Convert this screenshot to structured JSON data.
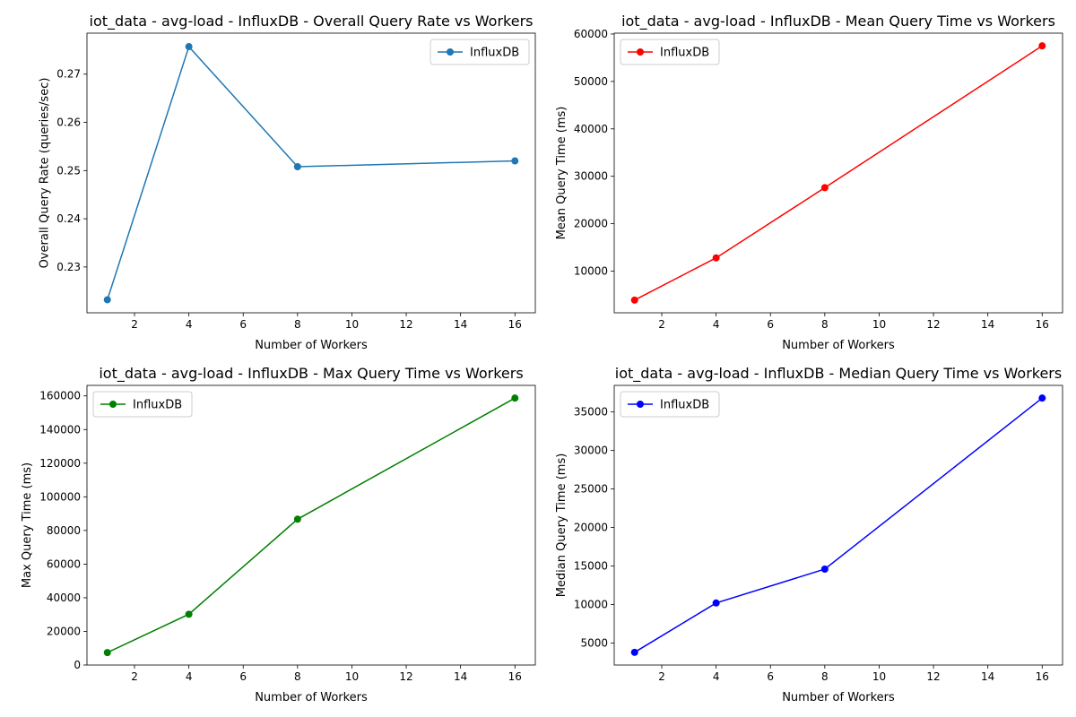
{
  "chart_data": [
    {
      "type": "line",
      "title": "iot_data - avg-load - InfluxDB - Overall Query Rate vs Workers",
      "xlabel": "Number of Workers",
      "ylabel": "Overall Query Rate (queries/sec)",
      "x": [
        1,
        4,
        8,
        16
      ],
      "series": [
        {
          "name": "InfluxDB",
          "values": [
            0.2232,
            0.2757,
            0.2508,
            0.252
          ],
          "color": "#1f77b4"
        }
      ],
      "xlim": [
        0.25,
        16.75
      ],
      "ylim": [
        0.2205,
        0.2785
      ],
      "xticks": [
        2,
        4,
        6,
        8,
        10,
        12,
        14,
        16
      ],
      "yticks": [
        0.23,
        0.24,
        0.25,
        0.26,
        0.27
      ],
      "yticklabels": [
        "0.23",
        "0.24",
        "0.25",
        "0.26",
        "0.27"
      ],
      "legend": "top-right",
      "grid": false
    },
    {
      "type": "line",
      "title": "iot_data - avg-load - InfluxDB - Mean Query Time vs Workers",
      "xlabel": "Number of Workers",
      "ylabel": "Mean Query Time (ms)",
      "x": [
        1,
        4,
        8,
        16
      ],
      "series": [
        {
          "name": "InfluxDB",
          "values": [
            3900,
            12800,
            27600,
            57500
          ],
          "color": "#ff0000"
        }
      ],
      "xlim": [
        0.25,
        16.75
      ],
      "ylim": [
        1220,
        60180
      ],
      "xticks": [
        2,
        4,
        6,
        8,
        10,
        12,
        14,
        16
      ],
      "yticks": [
        10000,
        20000,
        30000,
        40000,
        50000,
        60000
      ],
      "yticklabels": [
        "10000",
        "20000",
        "30000",
        "40000",
        "50000",
        "60000"
      ],
      "legend": "top-left",
      "grid": false
    },
    {
      "type": "line",
      "title": "iot_data - avg-load - InfluxDB - Max Query Time vs Workers",
      "xlabel": "Number of Workers",
      "ylabel": "Max Query Time (ms)",
      "x": [
        1,
        4,
        8,
        16
      ],
      "series": [
        {
          "name": "InfluxDB",
          "values": [
            7400,
            30200,
            86700,
            158700
          ],
          "color": "#008000"
        }
      ],
      "xlim": [
        0.25,
        16.75
      ],
      "ylim": [
        0,
        166260
      ],
      "xticks": [
        2,
        4,
        6,
        8,
        10,
        12,
        14,
        16
      ],
      "yticks": [
        0,
        20000,
        40000,
        60000,
        80000,
        100000,
        120000,
        140000,
        160000
      ],
      "yticklabels": [
        "0",
        "20000",
        "40000",
        "60000",
        "80000",
        "100000",
        "120000",
        "140000",
        "160000"
      ],
      "legend": "top-left",
      "grid": false
    },
    {
      "type": "line",
      "title": "iot_data - avg-load - InfluxDB - Median Query Time vs Workers",
      "xlabel": "Number of Workers",
      "ylabel": "Median Query Time (ms)",
      "x": [
        1,
        4,
        8,
        16
      ],
      "series": [
        {
          "name": "InfluxDB",
          "values": [
            3800,
            10200,
            14600,
            36800
          ],
          "color": "#0000ff"
        }
      ],
      "xlim": [
        0.25,
        16.75
      ],
      "ylim": [
        2150,
        38450
      ],
      "xticks": [
        2,
        4,
        6,
        8,
        10,
        12,
        14,
        16
      ],
      "yticks": [
        5000,
        10000,
        15000,
        20000,
        25000,
        30000,
        35000
      ],
      "yticklabels": [
        "5000",
        "10000",
        "15000",
        "20000",
        "25000",
        "30000",
        "35000"
      ],
      "legend": "top-left",
      "grid": false
    }
  ]
}
